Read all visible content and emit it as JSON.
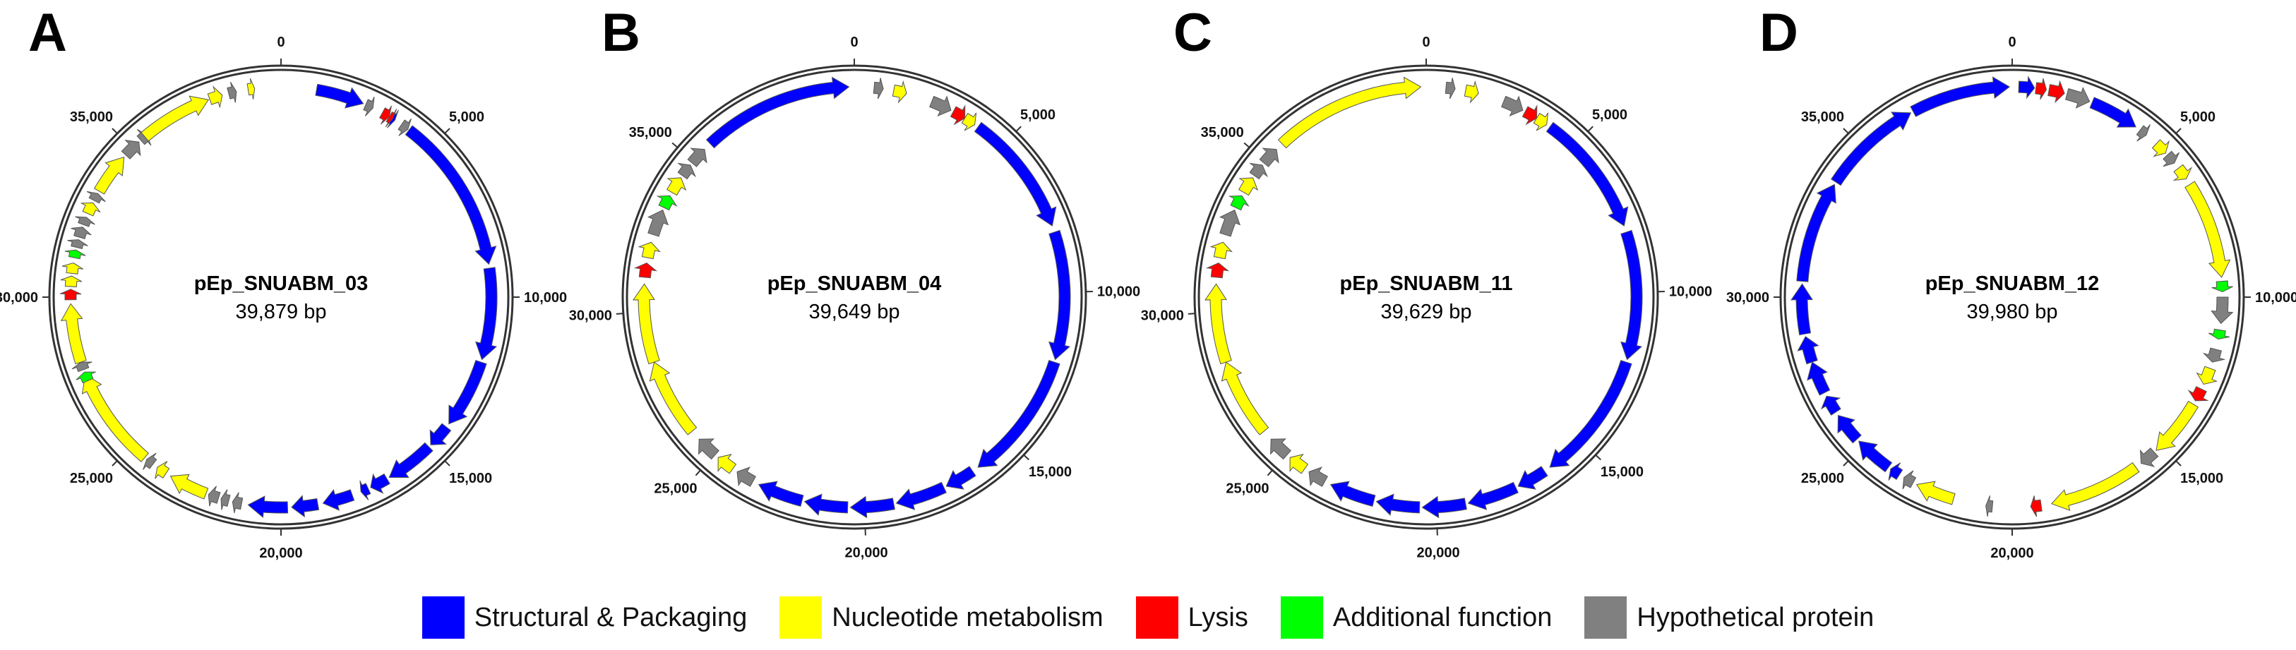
{
  "figure_letters": [
    "A",
    "B",
    "C",
    "D"
  ],
  "panels": [
    {
      "letter": "A",
      "name": "pEp_SNUABM_03",
      "size_label": "39,879 bp",
      "tick_labels": [
        "0",
        "5,000",
        "10,000",
        "15,000",
        "20,000",
        "25,000",
        "30,000",
        "35,000"
      ]
    },
    {
      "letter": "B",
      "name": "pEp_SNUABM_04",
      "size_label": "39,649 bp",
      "tick_labels": [
        "0",
        "5,000",
        "10,000",
        "15,000",
        "20,000",
        "25,000",
        "30,000",
        "35,000"
      ]
    },
    {
      "letter": "C",
      "name": "pEp_SNUABM_11",
      "size_label": "39,629 bp",
      "tick_labels": [
        "0",
        "5,000",
        "10,000",
        "15,000",
        "20,000",
        "25,000",
        "30,000",
        "35,000"
      ]
    },
    {
      "letter": "D",
      "name": "pEp_SNUABM_12",
      "size_label": "39,980 bp",
      "tick_labels": [
        "0",
        "5,000",
        "10,000",
        "15,000",
        "20,000",
        "25,000",
        "30,000",
        "35,000"
      ]
    }
  ],
  "legend": [
    {
      "key": "structural",
      "label": "Structural & Packaging",
      "color": "#0000ff"
    },
    {
      "key": "nucleotide",
      "label": "Nucleotide metabolism",
      "color": "#ffff00"
    },
    {
      "key": "lysis",
      "label": "Lysis",
      "color": "#ff0000"
    },
    {
      "key": "additional",
      "label": "Additional function",
      "color": "#00ff00"
    },
    {
      "key": "hypothetical",
      "label": "Hypothetical protein",
      "color": "#808080"
    }
  ],
  "genome_maps": [
    {
      "name": "pEp_SNUABM_03",
      "genes": [
        {
          "f": 0.027,
          "t": 0.064,
          "s": 1,
          "c": "structural"
        },
        {
          "f": 0.066,
          "t": 0.072,
          "s": 1,
          "c": "hypothetical"
        },
        {
          "f": 0.08,
          "t": 0.086,
          "s": 1,
          "c": "lysis"
        },
        {
          "f": 0.087,
          "t": 0.091,
          "s": 1,
          "c": "structural"
        },
        {
          "f": 0.086,
          "t": 0.089,
          "s": 1,
          "c": "lysis"
        },
        {
          "f": 0.097,
          "t": 0.103,
          "s": 1,
          "c": "hypothetical"
        },
        {
          "f": 0.104,
          "t": 0.225,
          "s": 1,
          "c": "structural"
        },
        {
          "f": 0.228,
          "t": 0.298,
          "s": 1,
          "c": "structural"
        },
        {
          "f": 0.3,
          "t": 0.353,
          "s": 1,
          "c": "structural"
        },
        {
          "f": 0.356,
          "t": 0.374,
          "s": 1,
          "c": "structural"
        },
        {
          "f": 0.376,
          "t": 0.414,
          "s": 1,
          "c": "structural"
        },
        {
          "f": 0.416,
          "t": 0.43,
          "s": 1,
          "c": "structural"
        },
        {
          "f": 0.432,
          "t": 0.438,
          "s": 1,
          "c": "structural"
        },
        {
          "f": 0.445,
          "t": 0.468,
          "s": 1,
          "c": "structural"
        },
        {
          "f": 0.472,
          "t": 0.492,
          "s": 1,
          "c": "structural"
        },
        {
          "f": 0.495,
          "t": 0.525,
          "s": 1,
          "c": "structural"
        },
        {
          "f": 0.53,
          "t": 0.537,
          "s": 1,
          "c": "hypothetical"
        },
        {
          "f": 0.54,
          "t": 0.546,
          "s": 1,
          "c": "hypothetical"
        },
        {
          "f": 0.548,
          "t": 0.556,
          "s": 1,
          "c": "hypothetical"
        },
        {
          "f": 0.558,
          "t": 0.588,
          "s": 1,
          "c": "nucleotide"
        },
        {
          "f": 0.592,
          "t": 0.6,
          "s": 1,
          "c": "nucleotide"
        },
        {
          "f": 0.604,
          "t": 0.61,
          "s": 1,
          "c": "hypothetical"
        },
        {
          "f": 0.612,
          "t": 0.69,
          "s": 1,
          "c": "nucleotide"
        },
        {
          "f": 0.685,
          "t": 0.692,
          "s": 1,
          "c": "additional"
        },
        {
          "f": 0.694,
          "t": 0.7,
          "s": 1,
          "c": "hypothetical"
        },
        {
          "f": 0.7,
          "t": 0.745,
          "s": 1,
          "c": "nucleotide"
        },
        {
          "f": 0.748,
          "t": 0.756,
          "s": 1,
          "c": "lysis"
        },
        {
          "f": 0.758,
          "t": 0.766,
          "s": 1,
          "c": "nucleotide"
        },
        {
          "f": 0.768,
          "t": 0.776,
          "s": 1,
          "c": "nucleotide"
        },
        {
          "f": 0.78,
          "t": 0.786,
          "s": 1,
          "c": "additional"
        },
        {
          "f": 0.788,
          "t": 0.794,
          "s": 1,
          "c": "hypothetical"
        },
        {
          "f": 0.796,
          "t": 0.804,
          "s": 1,
          "c": "hypothetical"
        },
        {
          "f": 0.806,
          "t": 0.812,
          "s": 1,
          "c": "hypothetical"
        },
        {
          "f": 0.815,
          "t": 0.824,
          "s": 1,
          "c": "nucleotide"
        },
        {
          "f": 0.826,
          "t": 0.832,
          "s": 1,
          "c": "hypothetical"
        },
        {
          "f": 0.834,
          "t": 0.866,
          "s": 1,
          "c": "nucleotide"
        },
        {
          "f": 0.868,
          "t": 0.882,
          "s": 1,
          "c": "hypothetical"
        },
        {
          "f": 0.884,
          "t": 0.89,
          "s": 1,
          "c": "hypothetical"
        },
        {
          "f": 0.888,
          "t": 0.944,
          "s": 1,
          "c": "nucleotide"
        },
        {
          "f": 0.945,
          "t": 0.955,
          "s": 1,
          "c": "nucleotide"
        },
        {
          "f": 0.96,
          "t": 0.966,
          "s": 1,
          "c": "hypothetical"
        },
        {
          "f": 0.975,
          "t": 0.98,
          "s": 1,
          "c": "nucleotide"
        }
      ]
    },
    {
      "name": "pEp_SNUABM_04",
      "genes": [
        {
          "f": 0.88,
          "t": 0.996,
          "s": 1,
          "c": "structural"
        },
        {
          "f": 0.86,
          "t": 0.874,
          "s": 1,
          "c": "hypothetical"
        },
        {
          "f": 0.848,
          "t": 0.858,
          "s": 1,
          "c": "hypothetical"
        },
        {
          "f": 0.833,
          "t": 0.846,
          "s": 1,
          "c": "nucleotide"
        },
        {
          "f": 0.82,
          "t": 0.83,
          "s": 1,
          "c": "additional"
        },
        {
          "f": 0.798,
          "t": 0.818,
          "s": 1,
          "c": "hypothetical"
        },
        {
          "f": 0.78,
          "t": 0.792,
          "s": 1,
          "c": "nucleotide"
        },
        {
          "f": 0.765,
          "t": 0.776,
          "s": 1,
          "c": "lysis"
        },
        {
          "f": 0.7,
          "t": 0.76,
          "s": 1,
          "c": "nucleotide"
        },
        {
          "f": 0.64,
          "t": 0.7,
          "s": 1,
          "c": "nucleotide"
        },
        {
          "f": 0.615,
          "t": 0.632,
          "s": 1,
          "c": "hypothetical"
        },
        {
          "f": 0.598,
          "t": 0.612,
          "s": 1,
          "c": "nucleotide"
        },
        {
          "f": 0.58,
          "t": 0.594,
          "s": 1,
          "c": "hypothetical"
        },
        {
          "f": 0.54,
          "t": 0.575,
          "s": 1,
          "c": "structural"
        },
        {
          "f": 0.505,
          "t": 0.538,
          "s": 1,
          "c": "structural"
        },
        {
          "f": 0.47,
          "t": 0.503,
          "s": 1,
          "c": "structural"
        },
        {
          "f": 0.43,
          "t": 0.468,
          "s": 1,
          "c": "structural"
        },
        {
          "f": 0.405,
          "t": 0.428,
          "s": 1,
          "c": "structural"
        },
        {
          "f": 0.3,
          "t": 0.4,
          "s": 1,
          "c": "structural"
        },
        {
          "f": 0.2,
          "t": 0.298,
          "s": 1,
          "c": "structural"
        },
        {
          "f": 0.1,
          "t": 0.195,
          "s": 1,
          "c": "structural"
        },
        {
          "f": 0.088,
          "t": 0.097,
          "s": 1,
          "c": "nucleotide"
        },
        {
          "f": 0.078,
          "t": 0.088,
          "s": 1,
          "c": "lysis"
        },
        {
          "f": 0.06,
          "t": 0.076,
          "s": 1,
          "c": "hypothetical"
        },
        {
          "f": 0.03,
          "t": 0.04,
          "s": 1,
          "c": "nucleotide"
        },
        {
          "f": 0.015,
          "t": 0.022,
          "s": 1,
          "c": "hypothetical"
        }
      ]
    },
    {
      "name": "pEp_SNUABM_11",
      "genes": [
        {
          "f": 0.88,
          "t": 0.996,
          "s": 1,
          "c": "nucleotide"
        },
        {
          "f": 0.86,
          "t": 0.874,
          "s": 1,
          "c": "hypothetical"
        },
        {
          "f": 0.848,
          "t": 0.858,
          "s": 1,
          "c": "hypothetical"
        },
        {
          "f": 0.833,
          "t": 0.846,
          "s": 1,
          "c": "nucleotide"
        },
        {
          "f": 0.82,
          "t": 0.83,
          "s": 1,
          "c": "additional"
        },
        {
          "f": 0.798,
          "t": 0.818,
          "s": 1,
          "c": "hypothetical"
        },
        {
          "f": 0.78,
          "t": 0.792,
          "s": 1,
          "c": "nucleotide"
        },
        {
          "f": 0.765,
          "t": 0.776,
          "s": 1,
          "c": "lysis"
        },
        {
          "f": 0.7,
          "t": 0.76,
          "s": 1,
          "c": "nucleotide"
        },
        {
          "f": 0.64,
          "t": 0.7,
          "s": 1,
          "c": "nucleotide"
        },
        {
          "f": 0.615,
          "t": 0.632,
          "s": 1,
          "c": "hypothetical"
        },
        {
          "f": 0.598,
          "t": 0.612,
          "s": 1,
          "c": "nucleotide"
        },
        {
          "f": 0.58,
          "t": 0.594,
          "s": 1,
          "c": "hypothetical"
        },
        {
          "f": 0.54,
          "t": 0.575,
          "s": 1,
          "c": "structural"
        },
        {
          "f": 0.505,
          "t": 0.538,
          "s": 1,
          "c": "structural"
        },
        {
          "f": 0.47,
          "t": 0.503,
          "s": 1,
          "c": "structural"
        },
        {
          "f": 0.43,
          "t": 0.468,
          "s": 1,
          "c": "structural"
        },
        {
          "f": 0.405,
          "t": 0.428,
          "s": 1,
          "c": "structural"
        },
        {
          "f": 0.3,
          "t": 0.4,
          "s": 1,
          "c": "structural"
        },
        {
          "f": 0.2,
          "t": 0.298,
          "s": 1,
          "c": "structural"
        },
        {
          "f": 0.1,
          "t": 0.195,
          "s": 1,
          "c": "structural"
        },
        {
          "f": 0.088,
          "t": 0.097,
          "s": 1,
          "c": "nucleotide"
        },
        {
          "f": 0.078,
          "t": 0.088,
          "s": 1,
          "c": "lysis"
        },
        {
          "f": 0.06,
          "t": 0.076,
          "s": 1,
          "c": "hypothetical"
        },
        {
          "f": 0.03,
          "t": 0.04,
          "s": 1,
          "c": "nucleotide"
        },
        {
          "f": 0.015,
          "t": 0.022,
          "s": 1,
          "c": "hypothetical"
        }
      ]
    },
    {
      "name": "pEp_SNUABM_12",
      "genes": [
        {
          "f": 0.005,
          "t": 0.017,
          "s": 1,
          "c": "structural"
        },
        {
          "f": 0.018,
          "t": 0.026,
          "s": 1,
          "c": "lysis"
        },
        {
          "f": 0.028,
          "t": 0.04,
          "s": 1,
          "c": "lysis"
        },
        {
          "f": 0.042,
          "t": 0.06,
          "s": 1,
          "c": "hypothetical"
        },
        {
          "f": 0.062,
          "t": 0.1,
          "s": 1,
          "c": "structural"
        },
        {
          "f": 0.104,
          "t": 0.11,
          "s": 1,
          "c": "hypothetical"
        },
        {
          "f": 0.12,
          "t": 0.13,
          "s": 1,
          "c": "nucleotide"
        },
        {
          "f": 0.132,
          "t": 0.14,
          "s": 1,
          "c": "hypothetical"
        },
        {
          "f": 0.145,
          "t": 0.155,
          "s": 1,
          "c": "nucleotide"
        },
        {
          "f": 0.16,
          "t": 0.235,
          "s": 1,
          "c": "nucleotide"
        },
        {
          "f": 0.238,
          "t": 0.246,
          "s": 1,
          "c": "additional"
        },
        {
          "f": 0.25,
          "t": 0.27,
          "s": 1,
          "c": "hypothetical"
        },
        {
          "f": 0.275,
          "t": 0.282,
          "s": 1,
          "c": "additional"
        },
        {
          "f": 0.29,
          "t": 0.3,
          "s": 1,
          "c": "hypothetical"
        },
        {
          "f": 0.305,
          "t": 0.318,
          "s": 1,
          "c": "nucleotide"
        },
        {
          "f": 0.322,
          "t": 0.332,
          "s": 1,
          "c": "lysis"
        },
        {
          "f": 0.335,
          "t": 0.38,
          "s": 1,
          "c": "nucleotide"
        },
        {
          "f": 0.382,
          "t": 0.395,
          "s": 1,
          "c": "hypothetical"
        },
        {
          "f": 0.4,
          "t": 0.47,
          "s": 1,
          "c": "nucleotide"
        },
        {
          "f": 0.478,
          "t": 0.486,
          "s": 1,
          "c": "lysis"
        },
        {
          "f": 0.515,
          "t": 0.52,
          "s": 1,
          "c": "hypothetical"
        },
        {
          "f": 0.545,
          "t": 0.575,
          "s": 1,
          "c": "nucleotide"
        },
        {
          "f": 0.578,
          "t": 0.586,
          "s": 1,
          "c": "hypothetical"
        },
        {
          "f": 0.59,
          "t": 0.598,
          "s": 1,
          "c": "structural"
        },
        {
          "f": 0.6,
          "t": 0.63,
          "s": 1,
          "c": "structural"
        },
        {
          "f": 0.632,
          "t": 0.655,
          "s": 1,
          "c": "structural"
        },
        {
          "f": 0.658,
          "t": 0.672,
          "s": 1,
          "c": "structural"
        },
        {
          "f": 0.675,
          "t": 0.7,
          "s": 1,
          "c": "structural"
        },
        {
          "f": 0.7,
          "t": 0.72,
          "s": 1,
          "c": "structural"
        },
        {
          "f": 0.722,
          "t": 0.76,
          "s": 1,
          "c": "structural"
        },
        {
          "f": 0.762,
          "t": 0.84,
          "s": 1,
          "c": "structural"
        },
        {
          "f": 0.842,
          "t": 0.92,
          "s": 1,
          "c": "structural"
        },
        {
          "f": 0.922,
          "t": 0.998,
          "s": 1,
          "c": "structural"
        }
      ]
    }
  ]
}
